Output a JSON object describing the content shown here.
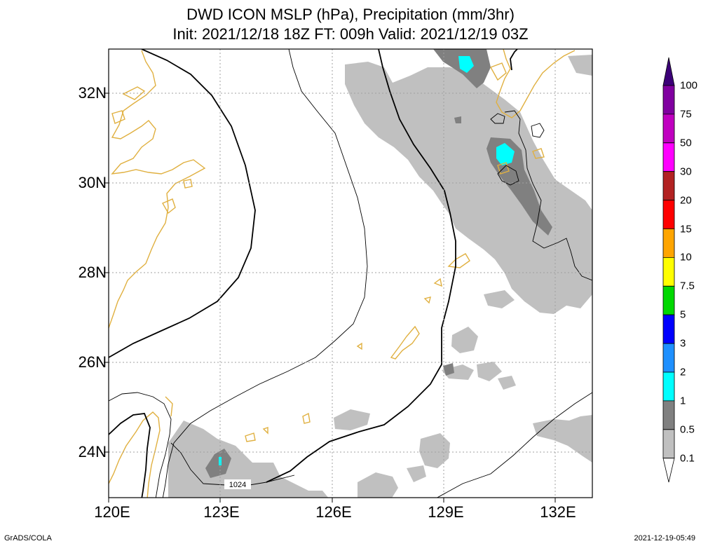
{
  "title_line1": "DWD ICON MSLP (hPa), Precipitation (mm/3hr)",
  "title_line2": "Init: 2021/12/18 18Z  FT: 009h  Valid: 2021/12/19 03Z",
  "lat_labels": [
    "32N",
    "30N",
    "28N",
    "26N",
    "24N"
  ],
  "lon_labels": [
    "120E",
    "123E",
    "126E",
    "129E",
    "132E"
  ],
  "isobar_label": "1024",
  "footer_left": "GrADS/COLA",
  "footer_right": "2021-12-19-05:49",
  "map": {
    "lon_range": [
      120,
      133
    ],
    "lat_range": [
      23,
      33
    ]
  },
  "colorbar": {
    "levels": [
      "0.1",
      "0.5",
      "1",
      "2",
      "3",
      "5",
      "7.5",
      "10",
      "15",
      "20",
      "30",
      "50",
      "75",
      "100"
    ],
    "colors": [
      "#ffffff",
      "#c0c0c0",
      "#808080",
      "#00ffff",
      "#1e90ff",
      "#0000ff",
      "#00d800",
      "#ffff00",
      "#ffa500",
      "#ff0000",
      "#b22222",
      "#ff00ff",
      "#c000c0",
      "#8000a0",
      "#3c0078"
    ]
  },
  "colors": {
    "coastline": "#e0b040",
    "grid": "#a0a0a0",
    "precip_light": "#c0c0c0",
    "precip_moderate": "#808080",
    "precip_heavy": "#00ffff"
  }
}
